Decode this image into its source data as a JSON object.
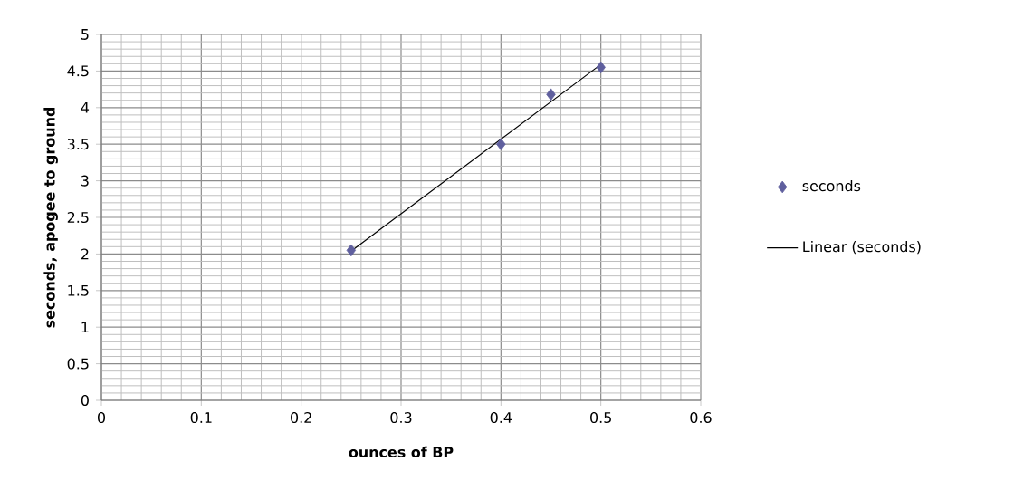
{
  "chart_data": {
    "type": "scatter",
    "xlabel": "ounces of BP",
    "ylabel": "seconds, apogee to ground",
    "x": [
      0.25,
      0.4,
      0.45,
      0.5
    ],
    "series": [
      {
        "name": "seconds",
        "color": "#5f5f9e",
        "values": [
          2.05,
          3.5,
          4.18,
          4.55
        ],
        "marker": "diamond"
      },
      {
        "name": "Linear (seconds)",
        "type": "line",
        "color": "#000000",
        "x": [
          0.25,
          0.5
        ],
        "values": [
          2.04,
          4.59
        ],
        "marker": "none",
        "line_style": "solid"
      }
    ],
    "xlim": [
      0,
      0.6
    ],
    "xticks": [
      0,
      0.1,
      0.2,
      0.3,
      0.4,
      0.5,
      0.6
    ],
    "ylim": [
      0,
      5
    ],
    "yticks": [
      0,
      0.5,
      1,
      1.5,
      2,
      2.5,
      3,
      3.5,
      4,
      4.5,
      5
    ],
    "grid": true,
    "legend": "right"
  }
}
